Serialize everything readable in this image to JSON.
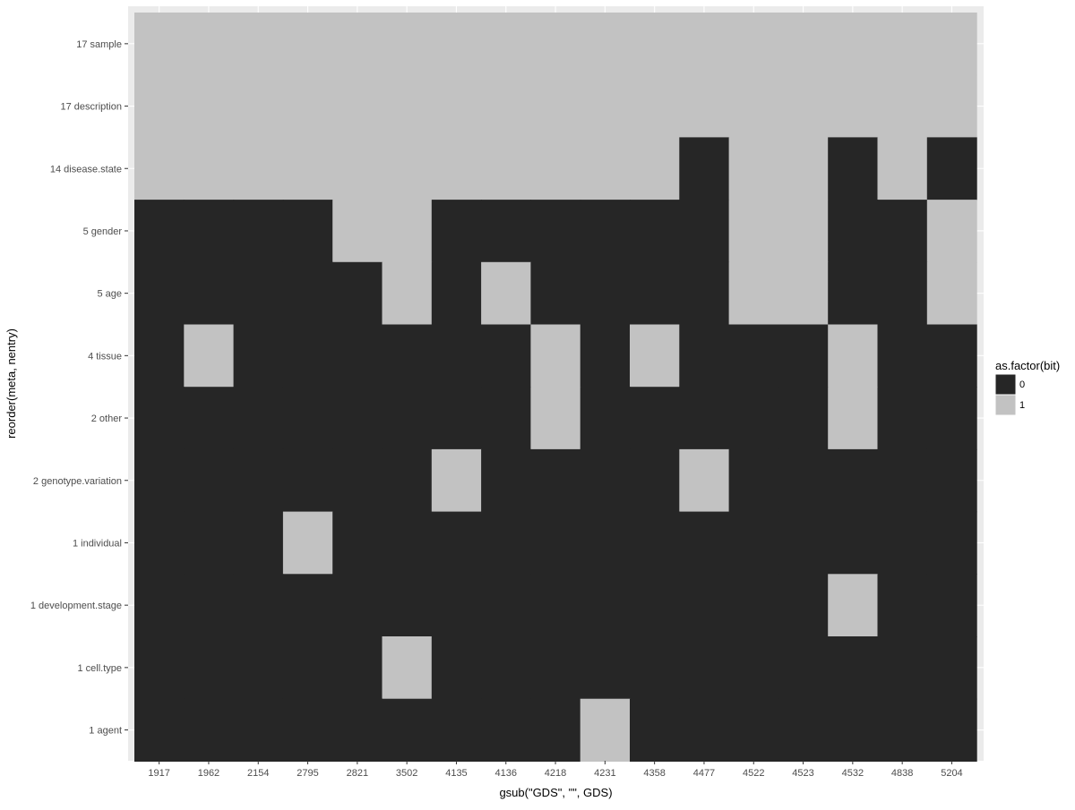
{
  "chart_data": {
    "type": "heatmap",
    "title": "",
    "xlabel": "gsub(\"GDS\", \"\", GDS)",
    "ylabel": "reorder(meta, nentry)",
    "x": [
      "1917",
      "1962",
      "2154",
      "2795",
      "2821",
      "3502",
      "4135",
      "4136",
      "4218",
      "4231",
      "4358",
      "4477",
      "4522",
      "4523",
      "4532",
      "4838",
      "5204"
    ],
    "y": [
      "17 sample",
      "17 description",
      "14 disease.state",
      "5 gender",
      "5 age",
      "4 tissue",
      "2 other",
      "2 genotype.variation",
      "1 individual",
      "1 development.stage",
      "1 cell.type",
      "1 agent"
    ],
    "values": [
      [
        1,
        1,
        1,
        1,
        1,
        1,
        1,
        1,
        1,
        1,
        1,
        1,
        1,
        1,
        1,
        1,
        1
      ],
      [
        1,
        1,
        1,
        1,
        1,
        1,
        1,
        1,
        1,
        1,
        1,
        1,
        1,
        1,
        1,
        1,
        1
      ],
      [
        1,
        1,
        1,
        1,
        1,
        1,
        1,
        1,
        1,
        1,
        1,
        0,
        1,
        1,
        0,
        1,
        0
      ],
      [
        0,
        0,
        0,
        0,
        1,
        1,
        0,
        0,
        0,
        0,
        0,
        0,
        1,
        1,
        0,
        0,
        1
      ],
      [
        0,
        0,
        0,
        0,
        0,
        1,
        0,
        1,
        0,
        0,
        0,
        0,
        1,
        1,
        0,
        0,
        1
      ],
      [
        0,
        1,
        0,
        0,
        0,
        0,
        0,
        0,
        1,
        0,
        1,
        0,
        0,
        0,
        1,
        0,
        0
      ],
      [
        0,
        0,
        0,
        0,
        0,
        0,
        0,
        0,
        1,
        0,
        0,
        0,
        0,
        0,
        1,
        0,
        0
      ],
      [
        0,
        0,
        0,
        0,
        0,
        0,
        1,
        0,
        0,
        0,
        0,
        1,
        0,
        0,
        0,
        0,
        0
      ],
      [
        0,
        0,
        0,
        1,
        0,
        0,
        0,
        0,
        0,
        0,
        0,
        0,
        0,
        0,
        0,
        0,
        0
      ],
      [
        0,
        0,
        0,
        0,
        0,
        0,
        0,
        0,
        0,
        0,
        0,
        0,
        0,
        0,
        1,
        0,
        0
      ],
      [
        0,
        0,
        0,
        0,
        0,
        1,
        0,
        0,
        0,
        0,
        0,
        0,
        0,
        0,
        0,
        0,
        0
      ],
      [
        0,
        0,
        0,
        0,
        0,
        0,
        0,
        0,
        0,
        1,
        0,
        0,
        0,
        0,
        0,
        0,
        0
      ]
    ],
    "legend": {
      "title": "as.factor(bit)",
      "position": "right",
      "entries": [
        {
          "label": "0",
          "color": "#262626"
        },
        {
          "label": "1",
          "color": "#c2c2c2"
        }
      ]
    },
    "panel_background": "#ebebeb",
    "grid": true
  }
}
